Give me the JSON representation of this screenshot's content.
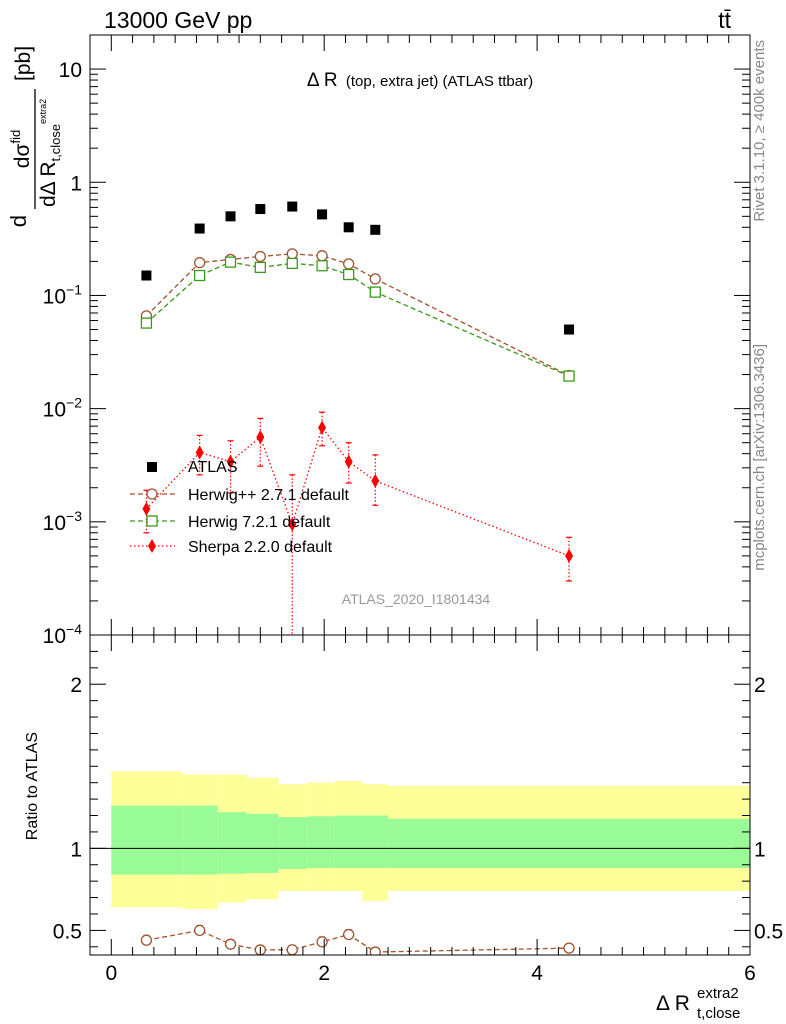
{
  "header": {
    "left": "13000 GeV pp",
    "right": "tt̄"
  },
  "side_text": {
    "rivet": "Rivet 3.1.10, ≥ 400k events",
    "mcplots": "mcplots.cern.ch [arXiv:1306.3436]"
  },
  "colors": {
    "atlas": "#000000",
    "herwigpp": "#a0522d",
    "herwig7": "#3a9a1a",
    "sherpa": "#ff0000",
    "band_inner": "#98fb98",
    "band_outer": "#ffff99"
  },
  "chart_data": [
    {
      "type": "scatter",
      "title_main": "Δ R",
      "title_sub": "(top, extra jet) (ATLAS ttbar)",
      "analysis_label": "ATLAS_2020_I1801434",
      "ylabel": {
        "frac_numerator": "dσ",
        "numerator_sup": "fid",
        "frac_denominator": "dΔ R",
        "denominator_sub": "t,close",
        "denominator_subsup": "extra2",
        "unit": "[pb]"
      },
      "yscale": "log",
      "xlim": [
        -0.2,
        6.0
      ],
      "ylim": [
        0.0001,
        20
      ],
      "ytick_labels": {
        "1e1": [
          "10",
          ""
        ],
        "1e0": [
          "1",
          ""
        ],
        "1e-1": [
          "10",
          "−1"
        ],
        "1e-2": [
          "10",
          "−2"
        ],
        "1e-3": [
          "10",
          "−3"
        ],
        "1e-4": [
          "10",
          "−4"
        ]
      },
      "legend_position": "lower-left",
      "series": [
        {
          "name": "ATLAS",
          "style": "data",
          "x": [
            0.33,
            0.83,
            1.12,
            1.4,
            1.7,
            1.98,
            2.23,
            2.48,
            4.3
          ],
          "y": [
            0.15,
            0.39,
            0.5,
            0.58,
            0.61,
            0.52,
            0.4,
            0.38,
            0.05
          ]
        },
        {
          "name": "Herwig++ 2.7.1 default",
          "style": "herwigpp",
          "x": [
            0.33,
            0.83,
            1.12,
            1.4,
            1.7,
            1.98,
            2.23,
            2.48,
            4.3
          ],
          "y": [
            0.066,
            0.195,
            0.208,
            0.221,
            0.233,
            0.224,
            0.19,
            0.14,
            0.0196
          ]
        },
        {
          "name": "Herwig 7.2.1 default",
          "style": "herwig7",
          "x": [
            0.33,
            0.83,
            1.12,
            1.4,
            1.7,
            1.98,
            2.23,
            2.48,
            4.3
          ],
          "y": [
            0.057,
            0.15,
            0.197,
            0.177,
            0.192,
            0.183,
            0.153,
            0.107,
            0.0194
          ]
        },
        {
          "name": "Sherpa 2.2.0 default",
          "style": "sherpa",
          "x": [
            0.33,
            0.83,
            1.12,
            1.4,
            1.7,
            1.98,
            2.23,
            2.48,
            4.3
          ],
          "y": [
            0.0013,
            0.0041,
            0.0034,
            0.0056,
            0.00095,
            0.0068,
            0.0034,
            0.0023,
            0.0005
          ],
          "ylow": [
            0.0008,
            0.0026,
            0.0018,
            0.0031,
            1e-07,
            0.0047,
            0.0022,
            0.0014,
            0.0003
          ],
          "yhigh": [
            0.0019,
            0.0058,
            0.0052,
            0.0082,
            0.0026,
            0.0093,
            0.005,
            0.0039,
            0.00073
          ]
        }
      ]
    },
    {
      "type": "area",
      "ylabel": "Ratio to ATLAS",
      "xlabel_main": "Δ R",
      "xlabel_sup": "extra2",
      "xlabel_sub": "t,close",
      "xlim": [
        -0.2,
        6.0
      ],
      "ylim": [
        0.35,
        2.3
      ],
      "xticks": [
        0,
        2,
        4,
        6
      ],
      "yticks": [
        0.5,
        1,
        2
      ],
      "bins": [
        [
          0.0,
          0.67
        ],
        [
          0.67,
          1.0
        ],
        [
          1.0,
          1.27
        ],
        [
          1.27,
          1.57
        ],
        [
          1.57,
          1.84
        ],
        [
          1.84,
          2.1
        ],
        [
          2.1,
          2.36
        ],
        [
          2.36,
          2.6
        ],
        [
          2.6,
          6.0
        ]
      ],
      "band_inner_low": [
        0.84,
        0.84,
        0.845,
        0.85,
        0.875,
        0.88,
        0.88,
        0.88,
        0.88
      ],
      "band_inner_high": [
        1.26,
        1.26,
        1.22,
        1.21,
        1.19,
        1.195,
        1.2,
        1.2,
        1.18
      ],
      "band_outer_low": [
        0.64,
        0.63,
        0.67,
        0.69,
        0.74,
        0.74,
        0.74,
        0.68,
        0.74
      ],
      "band_outer_high": [
        1.47,
        1.45,
        1.45,
        1.43,
        1.39,
        1.4,
        1.41,
        1.39,
        1.38
      ],
      "series": [
        {
          "name": "Herwig++ 2.7.1 default",
          "style": "herwigpp",
          "x": [
            0.33,
            0.83,
            1.12,
            1.4,
            1.7,
            1.98,
            2.23,
            2.48,
            4.3
          ],
          "y": [
            0.44,
            0.5,
            0.416,
            0.381,
            0.382,
            0.43,
            0.475,
            0.368,
            0.392
          ],
          "err": [
            0.03,
            0.03,
            0.02,
            0.02,
            0.02,
            0.03,
            0.03,
            0.02,
            0.02
          ]
        }
      ]
    }
  ]
}
